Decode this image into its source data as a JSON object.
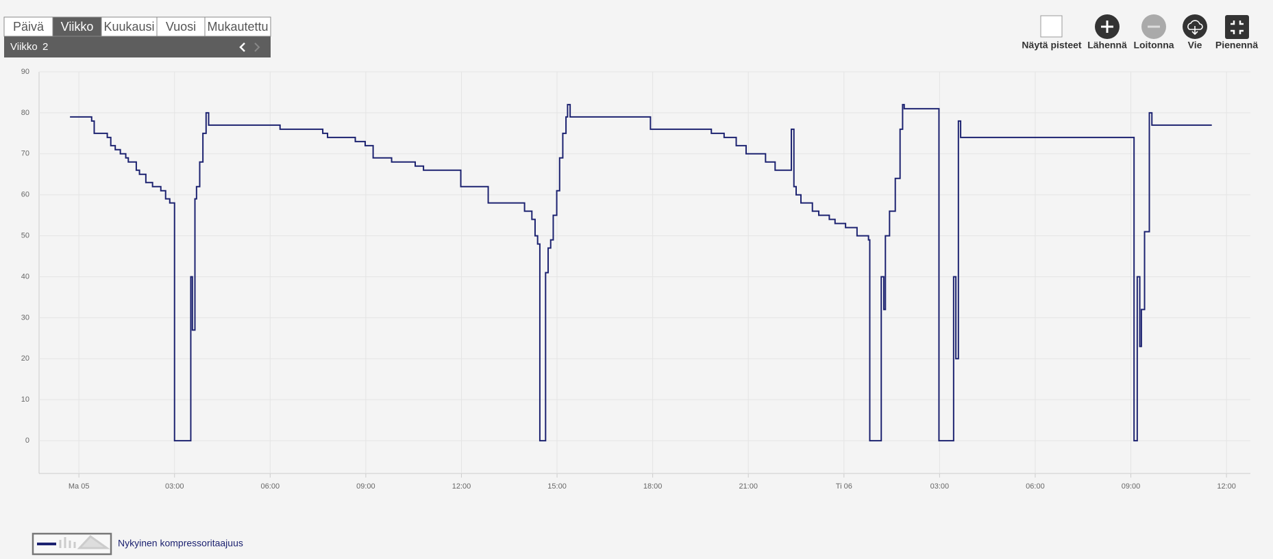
{
  "ui": {
    "tabs": [
      "Päivä",
      "Viikko",
      "Kuukausi",
      "Vuosi",
      "Mukautettu"
    ],
    "selected_tab": 1,
    "period_label": "Viikko",
    "period_number": 2,
    "toolbar": [
      "Näytä pisteet",
      "Lähennä",
      "Loitonna",
      "Vie",
      "Pienennä"
    ]
  },
  "chart_data": {
    "type": "line",
    "step": "after",
    "x": [
      -0.28,
      0.33,
      0.4,
      0.48,
      0.89,
      1.0,
      1.14,
      1.3,
      1.47,
      1.55,
      1.8,
      1.9,
      2.1,
      2.31,
      2.57,
      2.72,
      2.85,
      3.0,
      3.51,
      3.56,
      3.64,
      3.69,
      3.79,
      3.89,
      3.99,
      4.07,
      6.31,
      7.65,
      7.8,
      8.67,
      8.98,
      9.23,
      9.81,
      10.55,
      10.81,
      11.98,
      12.84,
      13.98,
      14.21,
      14.31,
      14.39,
      14.46,
      14.64,
      14.72,
      14.8,
      14.88,
      14.99,
      15.08,
      15.18,
      15.28,
      15.33,
      15.41,
      17.93,
      19.84,
      20.24,
      20.62,
      20.93,
      21.54,
      21.84,
      22.28,
      22.35,
      22.43,
      22.5,
      22.65,
      23.01,
      23.21,
      23.54,
      23.72,
      24.05,
      24.41,
      24.77,
      24.81,
      25.17,
      25.25,
      25.3,
      25.43,
      25.61,
      25.76,
      25.84,
      25.89,
      26.96,
      26.98,
      27.44,
      27.51,
      27.59,
      27.66,
      33.05,
      33.1,
      33.2,
      33.28,
      33.33,
      33.43,
      33.58,
      33.66,
      35.54
    ],
    "series": [
      {
        "name": "Nykyinen kompressoritaajuus",
        "color": "#1c2270",
        "values": [
          79,
          79,
          78,
          75,
          74,
          72,
          71,
          70,
          69,
          68,
          66,
          65,
          63,
          62,
          61,
          59,
          58,
          0,
          40,
          27,
          59,
          62,
          68,
          75,
          80,
          77,
          76,
          75,
          74,
          73,
          72,
          69,
          68,
          67,
          66,
          62,
          58,
          56,
          54,
          50,
          48,
          0,
          41,
          47,
          49,
          55,
          61,
          69,
          75,
          79,
          82,
          79,
          76,
          75,
          74,
          72,
          70,
          68,
          66,
          66,
          76,
          62,
          60,
          58,
          56,
          55,
          54,
          53,
          52,
          50,
          49,
          0,
          40,
          32,
          50,
          56,
          64,
          76,
          82,
          81,
          81,
          0,
          40,
          20,
          78,
          74,
          74,
          0,
          40,
          23,
          32,
          51,
          80,
          77,
          77
        ]
      }
    ],
    "xlim": [
      -1.25,
      36.75
    ],
    "xticks": [
      {
        "value": 0,
        "label": "Ma 05"
      },
      {
        "value": 3,
        "label": "03:00"
      },
      {
        "value": 6,
        "label": "06:00"
      },
      {
        "value": 9,
        "label": "09:00"
      },
      {
        "value": 12,
        "label": "12:00"
      },
      {
        "value": 15,
        "label": "15:00"
      },
      {
        "value": 18,
        "label": "18:00"
      },
      {
        "value": 21,
        "label": "21:00"
      },
      {
        "value": 24,
        "label": "Ti 06"
      },
      {
        "value": 27,
        "label": "03:00"
      },
      {
        "value": 30,
        "label": "06:00"
      },
      {
        "value": 33,
        "label": "09:00"
      },
      {
        "value": 36,
        "label": "12:00"
      }
    ],
    "ylim": [
      -8,
      90
    ],
    "yticks": [
      0,
      10,
      20,
      30,
      40,
      50,
      60,
      70,
      80,
      90
    ],
    "grid": true
  }
}
